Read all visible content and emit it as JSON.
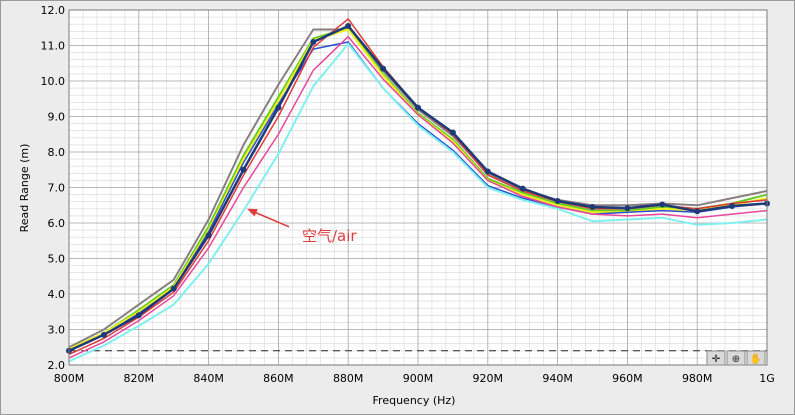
{
  "chart_data": {
    "type": "line",
    "xlabel": "Frequency (Hz)",
    "ylabel": "Read Range (m)",
    "x": [
      800,
      810,
      820,
      830,
      840,
      850,
      860,
      870,
      880,
      890,
      900,
      910,
      920,
      930,
      940,
      950,
      960,
      970,
      980,
      990,
      1000
    ],
    "x_tick_values": [
      800,
      820,
      840,
      860,
      880,
      900,
      920,
      940,
      960,
      980,
      1000
    ],
    "x_tick_labels": [
      "800M",
      "820M",
      "840M",
      "860M",
      "880M",
      "900M",
      "920M",
      "940M",
      "960M",
      "980M",
      "1G"
    ],
    "xlim": [
      800,
      1000
    ],
    "ylim": [
      2.0,
      12.0
    ],
    "y_ticks": [
      2.0,
      3.0,
      4.0,
      5.0,
      6.0,
      7.0,
      8.0,
      9.0,
      10.0,
      11.0,
      12.0
    ],
    "grid": true,
    "reference_line_y": 2.4,
    "annotation": {
      "text": "空气/air",
      "x": 851,
      "y": 6.4
    },
    "series": [
      {
        "color": "#8a7f7f",
        "width": 2,
        "markers": false,
        "values": [
          2.5,
          3.0,
          3.7,
          4.4,
          6.1,
          8.2,
          9.9,
          11.45,
          11.45,
          10.3,
          9.2,
          8.45,
          7.4,
          6.95,
          6.65,
          6.5,
          6.5,
          6.55,
          6.5,
          6.7,
          6.9
        ]
      },
      {
        "color": "#66cc22",
        "width": 2,
        "markers": false,
        "values": [
          2.45,
          2.9,
          3.55,
          4.25,
          5.9,
          7.9,
          9.55,
          11.2,
          11.5,
          10.2,
          9.1,
          8.35,
          7.25,
          6.85,
          6.55,
          6.35,
          6.35,
          6.45,
          6.4,
          6.55,
          6.8
        ]
      },
      {
        "color": "#f0f020",
        "width": 2,
        "markers": false,
        "values": [
          2.45,
          2.9,
          3.5,
          4.2,
          5.8,
          7.8,
          9.45,
          11.15,
          11.45,
          10.15,
          9.05,
          8.3,
          7.2,
          6.8,
          6.5,
          6.3,
          6.3,
          6.4,
          6.35,
          6.5,
          6.7
        ]
      },
      {
        "color": "#2b4fd0",
        "width": 1.5,
        "markers": false,
        "values": [
          2.4,
          2.85,
          3.45,
          4.15,
          5.75,
          7.7,
          9.35,
          10.9,
          11.1,
          9.8,
          8.8,
          8.05,
          7.05,
          6.7,
          6.45,
          6.25,
          6.3,
          6.35,
          6.3,
          6.45,
          6.55
        ]
      },
      {
        "color": "#e8489c",
        "width": 1.5,
        "markers": false,
        "values": [
          2.2,
          2.65,
          3.25,
          3.95,
          5.3,
          7.0,
          8.5,
          10.3,
          11.25,
          10.05,
          9.05,
          8.25,
          7.2,
          6.75,
          6.45,
          6.25,
          6.2,
          6.25,
          6.15,
          6.25,
          6.35
        ]
      },
      {
        "color": "#e03a3a",
        "width": 1.5,
        "markers": false,
        "values": [
          2.3,
          2.75,
          3.35,
          4.05,
          5.5,
          7.35,
          9.0,
          10.95,
          11.75,
          10.4,
          9.25,
          8.5,
          7.35,
          6.9,
          6.6,
          6.4,
          6.4,
          6.5,
          6.4,
          6.55,
          6.65
        ]
      },
      {
        "color": "#7ff0f0",
        "width": 2,
        "markers": false,
        "values": [
          2.1,
          2.55,
          3.1,
          3.7,
          4.85,
          6.35,
          7.95,
          9.85,
          11.05,
          9.8,
          8.75,
          8.0,
          7.0,
          6.65,
          6.4,
          6.05,
          6.1,
          6.15,
          5.95,
          6.0,
          6.1
        ]
      },
      {
        "color": "#1f3a78",
        "width": 2.5,
        "markers": true,
        "values": [
          2.4,
          2.85,
          3.4,
          4.15,
          5.65,
          7.5,
          9.25,
          11.1,
          11.55,
          10.35,
          9.25,
          8.55,
          7.45,
          6.97,
          6.62,
          6.45,
          6.42,
          6.52,
          6.33,
          6.48,
          6.55
        ]
      }
    ]
  }
}
